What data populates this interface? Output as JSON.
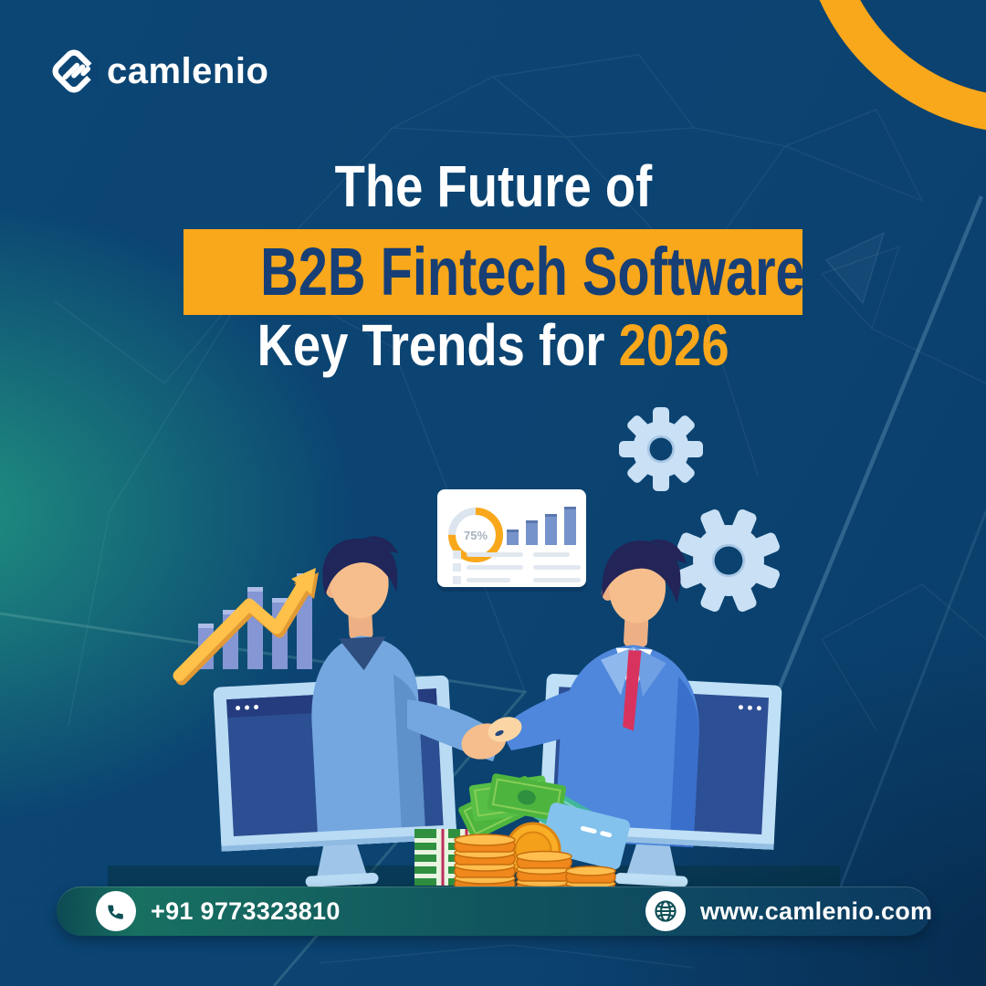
{
  "brand": {
    "name": "camlenio"
  },
  "title": {
    "line1": "The Future of",
    "line2": "B2B Fintech Software",
    "line3_prefix": "Key Trends for ",
    "line3_highlight": "2026"
  },
  "contact": {
    "phone": "+91 9773323810",
    "website": "www.camlenio.com"
  },
  "dashboard": {
    "donut_label": "75%",
    "donut_percent": 75,
    "bars": [
      17,
      27,
      34,
      42
    ]
  },
  "growth_chart": {
    "bars": [
      50,
      65,
      90,
      78,
      105
    ]
  },
  "icons": [
    "camlenio-logo-icon",
    "phone-icon",
    "globe-icon",
    "gear-icon",
    "growth-arrow-icon"
  ],
  "colors": {
    "accent_orange": "#F9A71B",
    "deep_blue": "#0B4371",
    "teal_glow": "#219680",
    "band_text": "#173F75",
    "pill_teal": "#156560"
  }
}
